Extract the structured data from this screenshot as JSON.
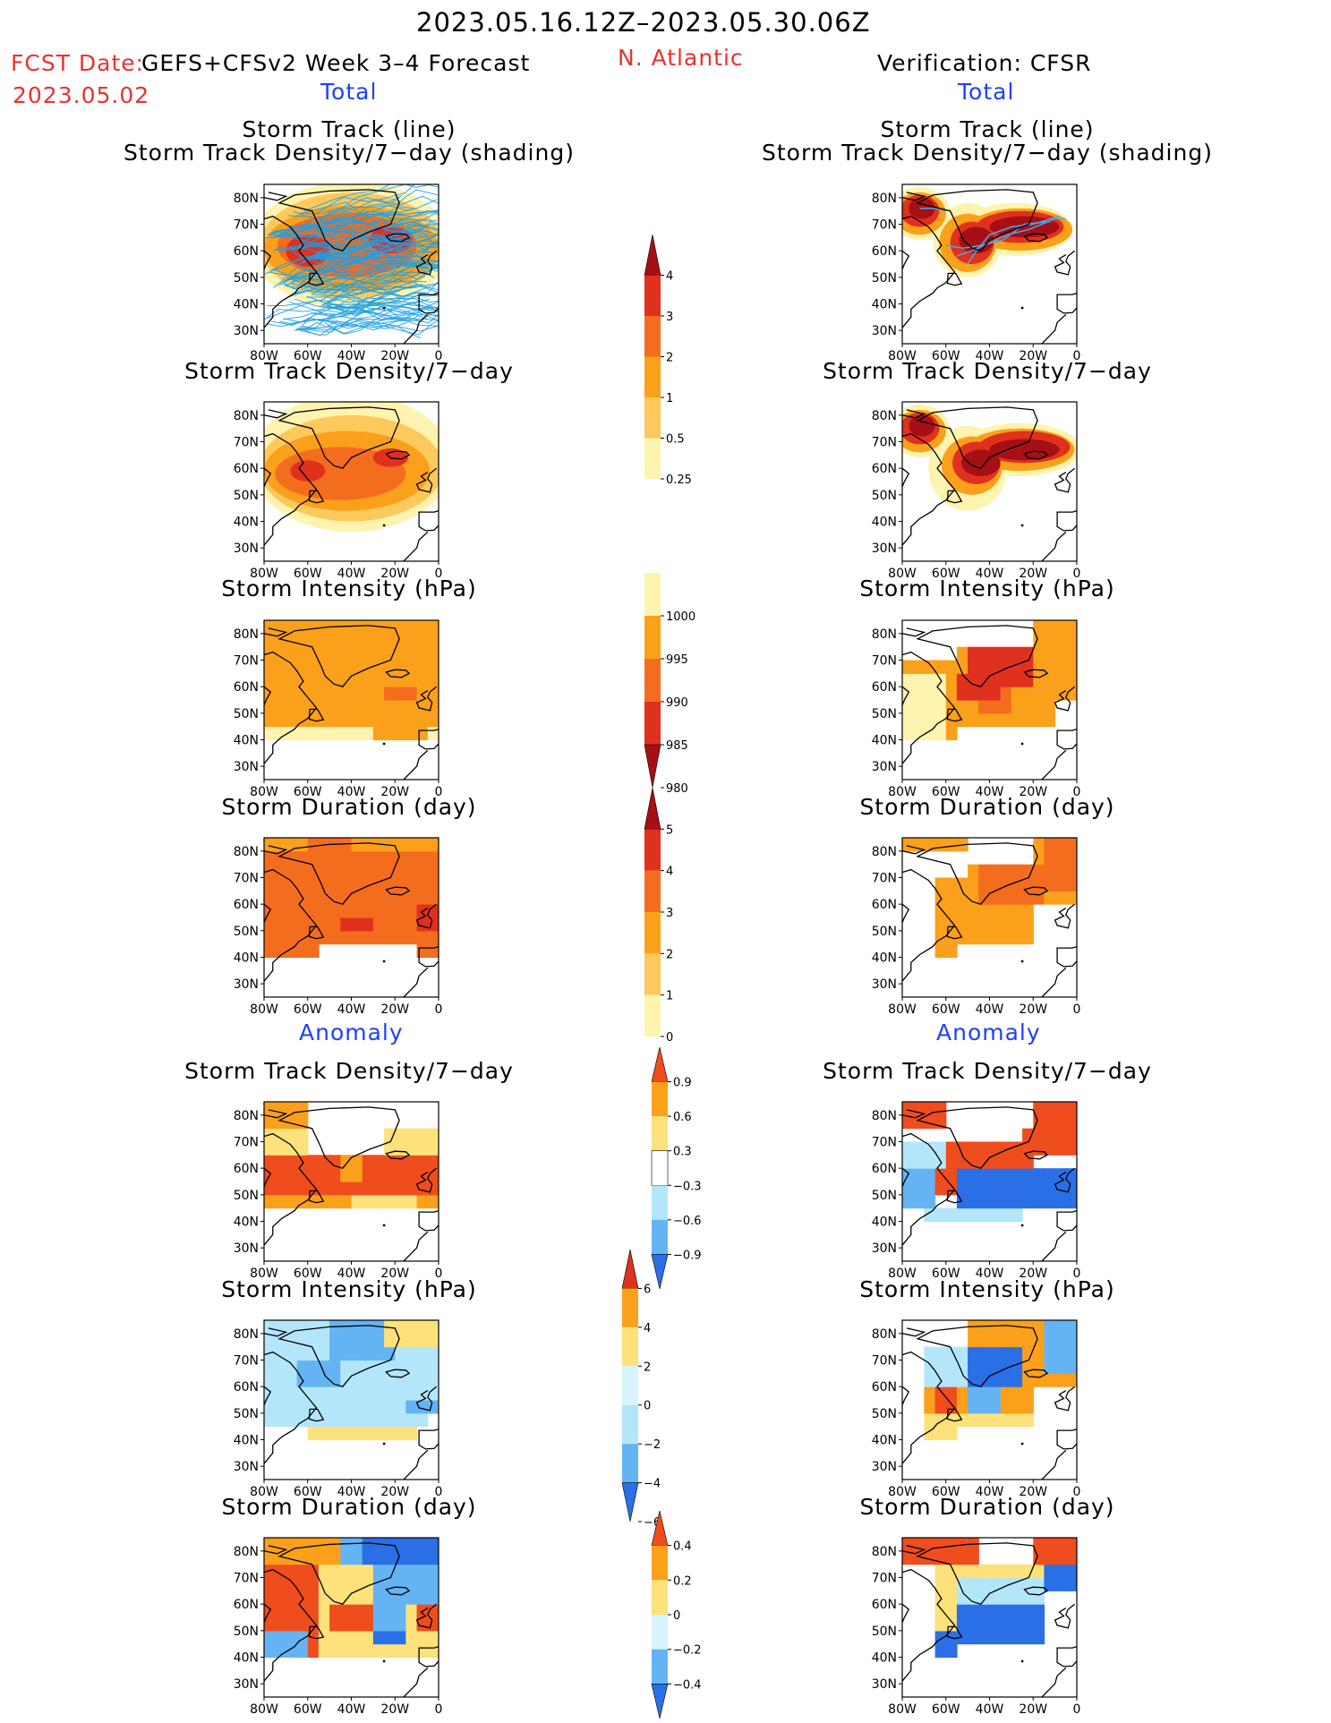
{
  "header": {
    "period": "2023.05.16.12Z–2023.05.30.06Z",
    "fcst_label": "FCST Date:",
    "forecast_name": "GEFS+CFSv2 Week 3–4 Forecast",
    "fcst_date": "2023.05.02",
    "region": "N. Atlantic",
    "verification": "Verification: CFSR"
  },
  "sections": {
    "total": "Total",
    "anomaly": "Anomaly"
  },
  "panel_titles": {
    "track_line": "Storm Track (line)",
    "track_shading": "Storm Track Density/7−day (shading)",
    "density": "Storm Track Density/7−day",
    "intensity": "Storm Intensity (hPa)",
    "duration": "Storm Duration (day)"
  },
  "axes": {
    "lat_labels": [
      "80N",
      "70N",
      "60N",
      "50N",
      "40N",
      "30N"
    ],
    "lon_labels": [
      "80W",
      "60W",
      "40W",
      "20W",
      "0"
    ]
  },
  "colorbars": {
    "total_density": {
      "labels": [
        "4",
        "3",
        "2",
        "1",
        "0.5",
        "0.25"
      ],
      "colors": [
        "#a50f15",
        "#e0301e",
        "#f46d1f",
        "#fba01a",
        "#fdc95c",
        "#fff3b0"
      ]
    },
    "total_intensity": {
      "labels": [
        "1000",
        "995",
        "990",
        "985",
        "980"
      ],
      "colors": [
        "#fff3b0",
        "#fba01a",
        "#f46d1f",
        "#e0301e",
        "#a50f15"
      ]
    },
    "total_duration": {
      "labels": [
        "5",
        "4",
        "3",
        "2",
        "1",
        "0"
      ],
      "colors": [
        "#a50f15",
        "#e0301e",
        "#f46d1f",
        "#fba01a",
        "#fdc95c",
        "#fff3b0"
      ]
    },
    "anom_density": {
      "labels": [
        "0.9",
        "0.6",
        "0.3",
        "−0.3",
        "−0.6",
        "−0.9"
      ],
      "colors": [
        "#ef4d1e",
        "#fba01a",
        "#fde17a",
        "#ffffff",
        "#b4e6fb",
        "#64b4f4",
        "#2a6fe6"
      ]
    },
    "anom_intensity": {
      "labels": [
        "6",
        "4",
        "2",
        "0",
        "−2",
        "−4",
        "−6"
      ],
      "colors": [
        "#e0301e",
        "#fba01a",
        "#fde17a",
        "#d8f4ff",
        "#b4e6fb",
        "#64b4f4",
        "#2a6fe6"
      ]
    },
    "anom_duration": {
      "labels": [
        "0.4",
        "0.2",
        "0",
        "−0.2",
        "−0.4"
      ],
      "colors": [
        "#ef4d1e",
        "#fba01a",
        "#fde17a",
        "#d8f4ff",
        "#64b4f4",
        "#2a6fe6"
      ]
    }
  },
  "colors": {
    "dark_red": "#a50f15",
    "red": "#e0301e",
    "orange_red": "#f46d1f",
    "orange": "#fba01a",
    "light_orange": "#fdc95c",
    "pale_yellow": "#fff3b0",
    "light_blue": "#b4e6fb",
    "mid_blue": "#64b4f4",
    "dark_blue": "#2a6fe6",
    "track_blue": "#1ea0e6",
    "header_red": "#e8332f",
    "header_blue": "#1f3fff"
  }
}
